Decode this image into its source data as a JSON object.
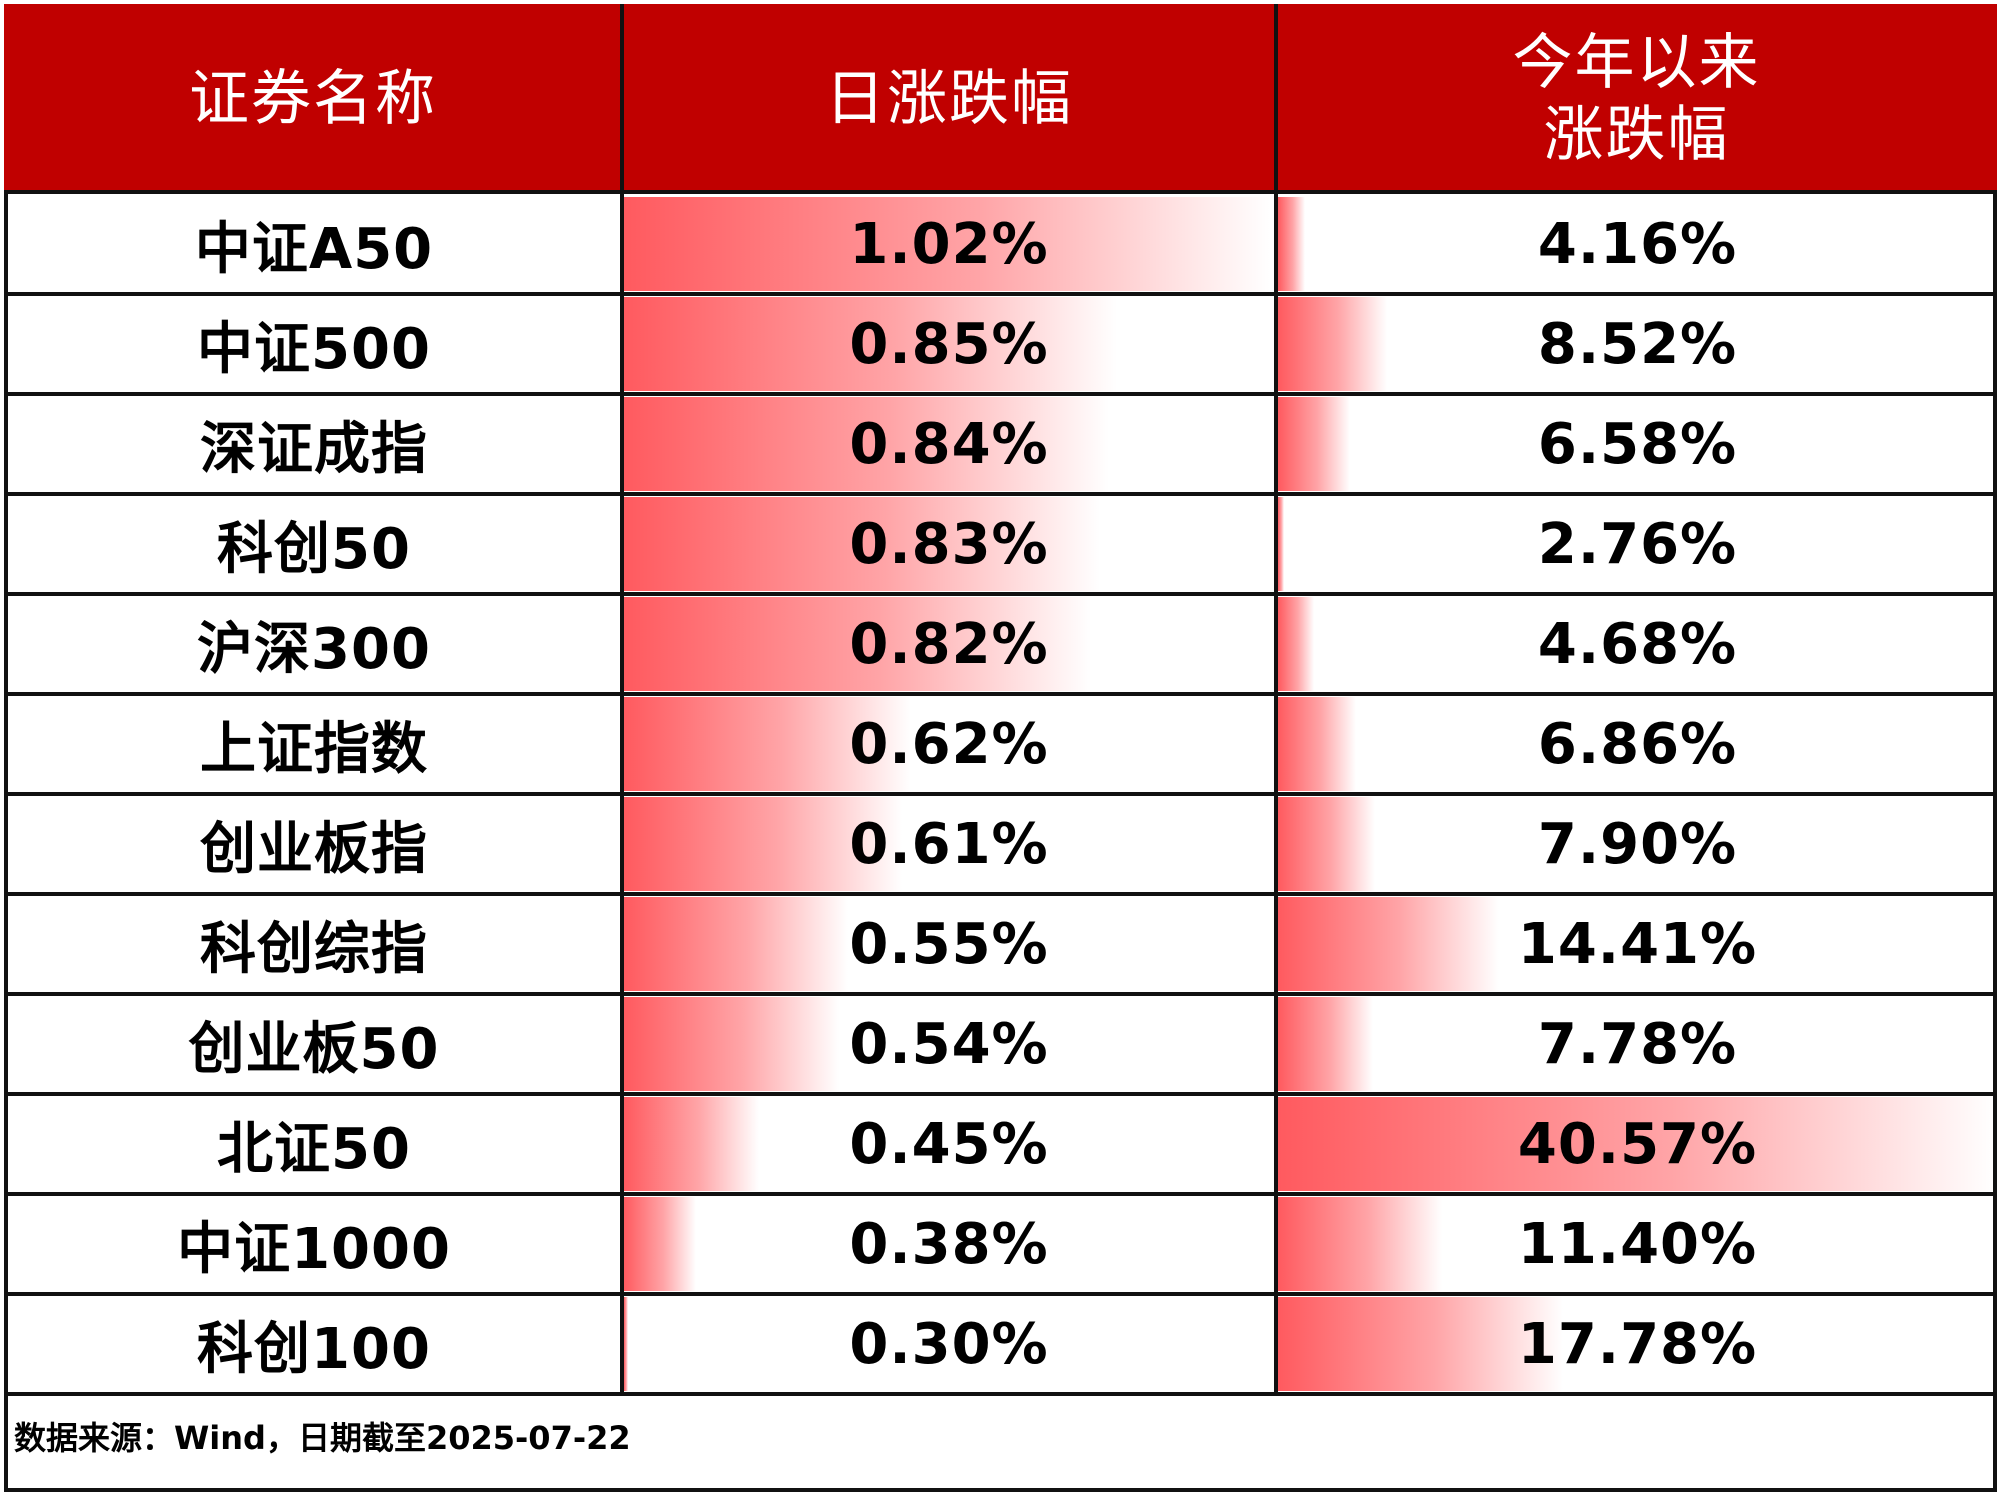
{
  "chart_data": {
    "type": "table",
    "columns": [
      "证券名称",
      "日涨跌幅",
      "今年以来涨跌幅"
    ],
    "column_header_lines": [
      [
        "证券名称"
      ],
      [
        "日涨跌幅"
      ],
      [
        "今年以来",
        "涨跌幅"
      ]
    ],
    "rows": [
      {
        "name": "中证A50",
        "daily": 1.02,
        "daily_label": "1.02%",
        "ytd": 4.16,
        "ytd_label": "4.16%"
      },
      {
        "name": "中证500",
        "daily": 0.85,
        "daily_label": "0.85%",
        "ytd": 8.52,
        "ytd_label": "8.52%"
      },
      {
        "name": "深证成指",
        "daily": 0.84,
        "daily_label": "0.84%",
        "ytd": 6.58,
        "ytd_label": "6.58%"
      },
      {
        "name": "科创50",
        "daily": 0.83,
        "daily_label": "0.83%",
        "ytd": 2.76,
        "ytd_label": "2.76%"
      },
      {
        "name": "沪深300",
        "daily": 0.82,
        "daily_label": "0.82%",
        "ytd": 4.68,
        "ytd_label": "4.68%"
      },
      {
        "name": "上证指数",
        "daily": 0.62,
        "daily_label": "0.62%",
        "ytd": 6.86,
        "ytd_label": "6.86%"
      },
      {
        "name": "创业板指",
        "daily": 0.61,
        "daily_label": "0.61%",
        "ytd": 7.9,
        "ytd_label": "7.90%"
      },
      {
        "name": "科创综指",
        "daily": 0.55,
        "daily_label": "0.55%",
        "ytd": 14.41,
        "ytd_label": "14.41%"
      },
      {
        "name": "创业板50",
        "daily": 0.54,
        "daily_label": "0.54%",
        "ytd": 7.78,
        "ytd_label": "7.78%"
      },
      {
        "name": "北证50",
        "daily": 0.45,
        "daily_label": "0.45%",
        "ytd": 40.57,
        "ytd_label": "40.57%"
      },
      {
        "name": "中证1000",
        "daily": 0.38,
        "daily_label": "0.38%",
        "ytd": 11.4,
        "ytd_label": "11.40%"
      },
      {
        "name": "科创100",
        "daily": 0.3,
        "daily_label": "0.30%",
        "ytd": 17.78,
        "ytd_label": "17.78%"
      }
    ],
    "daily_bar_range": [
      0.3,
      1.02
    ],
    "ytd_bar_range": [
      2.76,
      40.57
    ]
  },
  "colors": {
    "header_bg": "#c00000",
    "header_text": "#ffffff",
    "bar": "#ff5a5f",
    "grid": "#111111"
  },
  "footer": {
    "source": "数据来源：Wind，日期截至2025-07-22"
  }
}
